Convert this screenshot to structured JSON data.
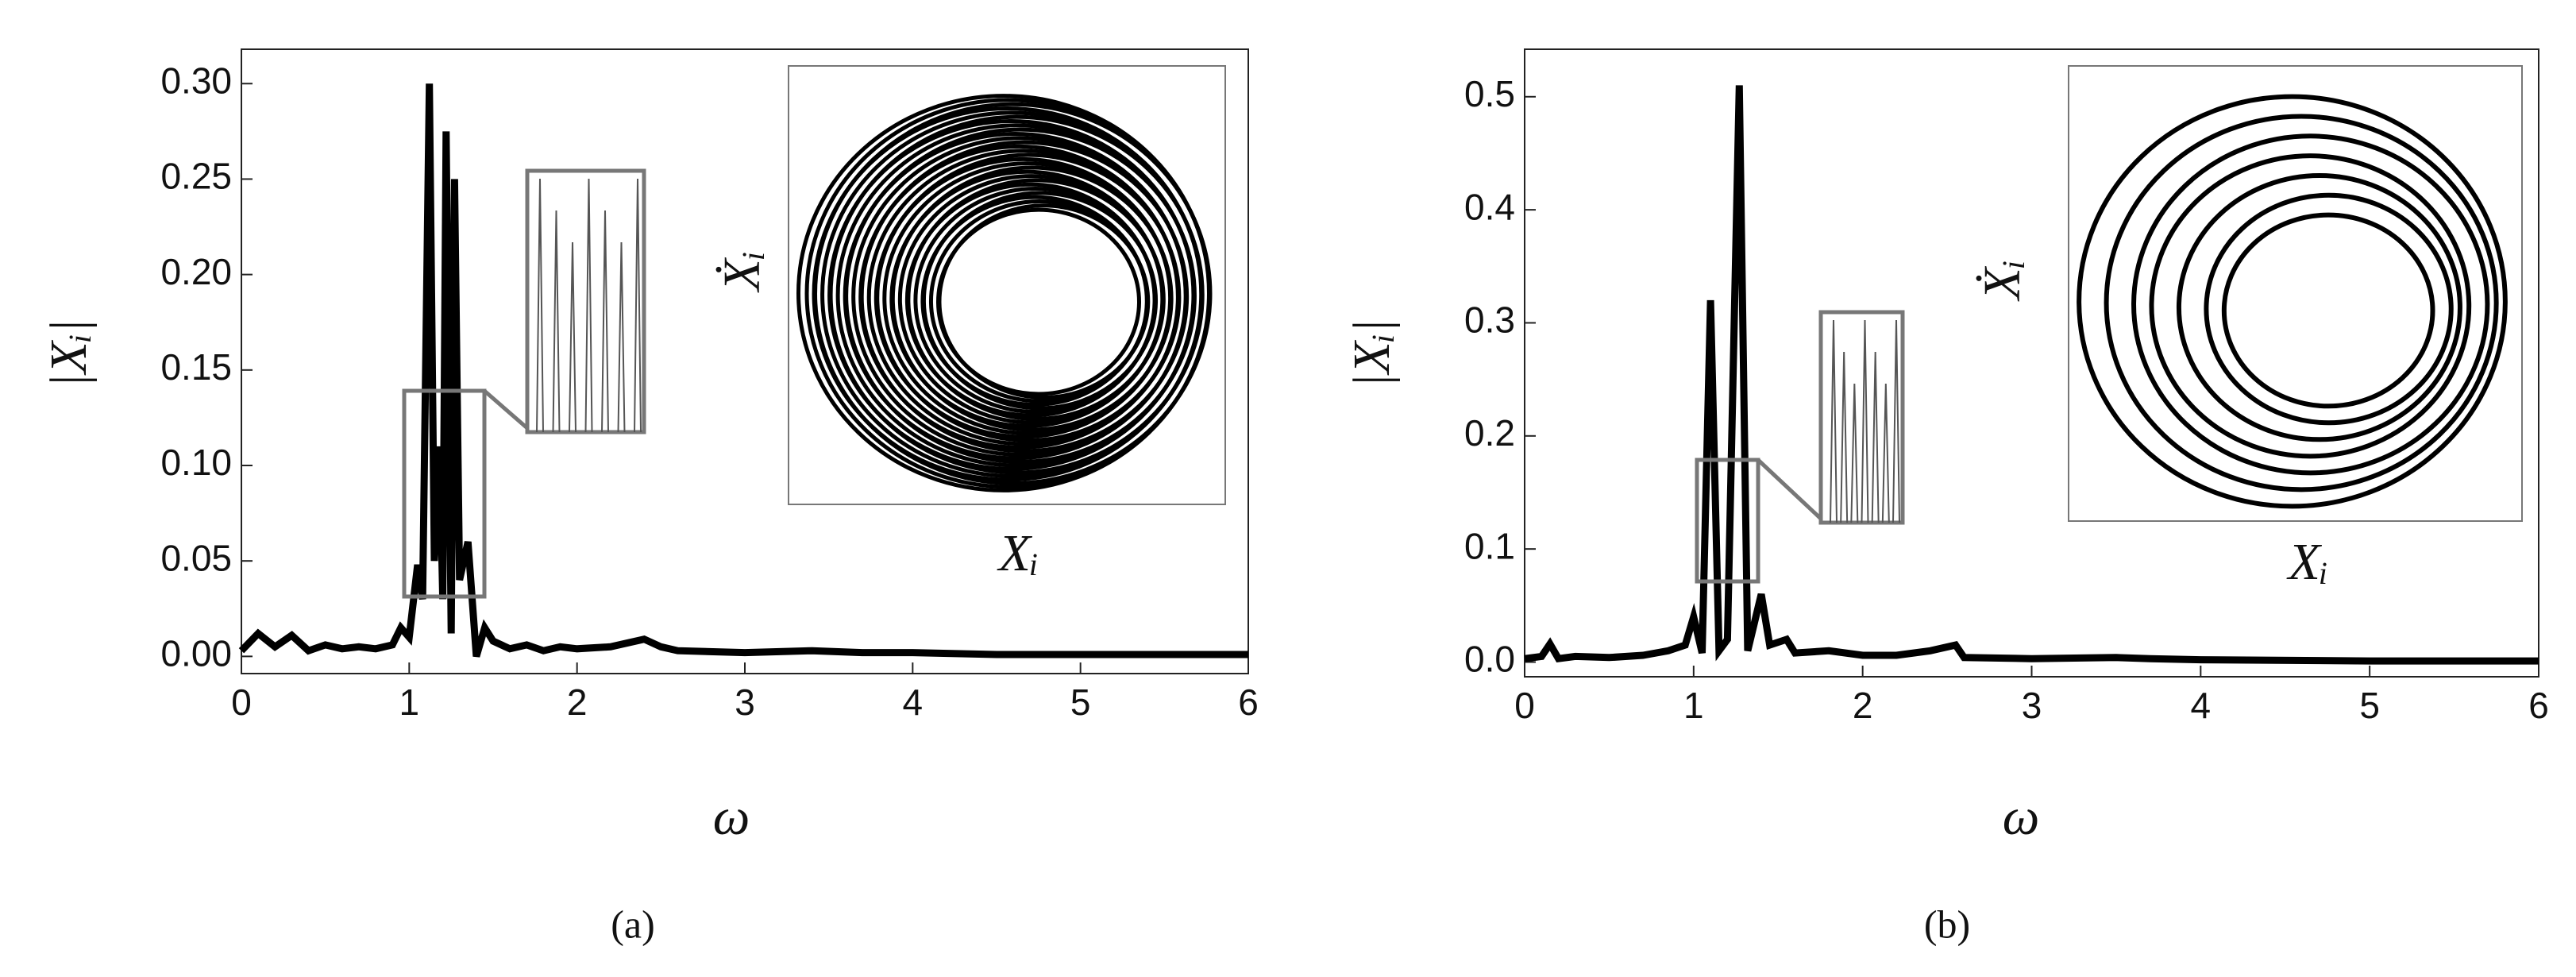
{
  "chart_data": [
    {
      "type": "line",
      "y_label": "|Xᵢ|",
      "x_label": "ω",
      "caption": "(a)",
      "inset_x_label": "Xᵢ",
      "inset_y_label": "Ẋᵢ",
      "color": "#000000",
      "x": [
        0,
        0.1,
        0.2,
        0.3,
        0.4,
        0.5,
        0.6,
        0.7,
        0.8,
        0.9,
        0.95,
        1.0,
        1.05,
        1.08,
        1.12,
        1.15,
        1.18,
        1.2,
        1.22,
        1.25,
        1.27,
        1.3,
        1.35,
        1.4,
        1.45,
        1.5,
        1.6,
        1.7,
        1.8,
        1.9,
        2.0,
        2.2,
        2.4,
        2.5,
        2.6,
        3.0,
        3.4,
        3.7,
        4.0,
        4.5,
        5.0,
        5.5,
        6.0
      ],
      "values": [
        0.003,
        0.012,
        0.005,
        0.011,
        0.003,
        0.006,
        0.004,
        0.005,
        0.004,
        0.006,
        0.015,
        0.01,
        0.048,
        0.03,
        0.3,
        0.05,
        0.11,
        0.03,
        0.275,
        0.012,
        0.25,
        0.04,
        0.06,
        0.0,
        0.015,
        0.008,
        0.004,
        0.006,
        0.003,
        0.005,
        0.004,
        0.005,
        0.009,
        0.005,
        0.003,
        0.002,
        0.003,
        0.002,
        0.002,
        0.001,
        0.001,
        0.001,
        0.001
      ],
      "xlim": [
        0,
        6
      ],
      "ylim": [
        -0.009,
        0.318
      ],
      "xticks": [
        0,
        1,
        2,
        3,
        4,
        5,
        6
      ],
      "yticks": [
        {
          "value": 0,
          "label": "0.00"
        },
        0.05,
        {
          "value": 0.1,
          "label": "0.10"
        },
        0.15,
        {
          "value": 0.2,
          "label": "0.20"
        },
        0.25,
        {
          "value": 0.3,
          "label": "0.30"
        }
      ]
    },
    {
      "type": "line",
      "y_label": "|Xᵢ|",
      "x_label": "ω",
      "caption": "(b)",
      "inset_x_label": "Xᵢ",
      "inset_y_label": "Ẋᵢ",
      "color": "#000000",
      "x": [
        0,
        0.1,
        0.15,
        0.2,
        0.3,
        0.5,
        0.7,
        0.85,
        0.95,
        1.0,
        1.05,
        1.1,
        1.15,
        1.2,
        1.27,
        1.32,
        1.4,
        1.45,
        1.55,
        1.6,
        1.8,
        2.0,
        2.2,
        2.4,
        2.55,
        2.6,
        3.0,
        3.5,
        3.7,
        4.0,
        5.0,
        6.0
      ],
      "values": [
        0.003,
        0.005,
        0.016,
        0.003,
        0.005,
        0.004,
        0.006,
        0.01,
        0.015,
        0.04,
        0.008,
        0.32,
        0.01,
        0.02,
        0.51,
        0.01,
        0.06,
        0.015,
        0.02,
        0.008,
        0.01,
        0.006,
        0.006,
        0.01,
        0.015,
        0.004,
        0.003,
        0.004,
        0.003,
        0.002,
        0.001,
        0.001
      ],
      "xlim": [
        0,
        6
      ],
      "ylim": [
        -0.013,
        0.542
      ],
      "xticks": [
        0,
        1,
        2,
        3,
        4,
        5,
        6
      ],
      "yticks": [
        {
          "value": 0,
          "label": "0.0"
        },
        0.1,
        0.2,
        0.3,
        0.4,
        0.5
      ]
    }
  ]
}
